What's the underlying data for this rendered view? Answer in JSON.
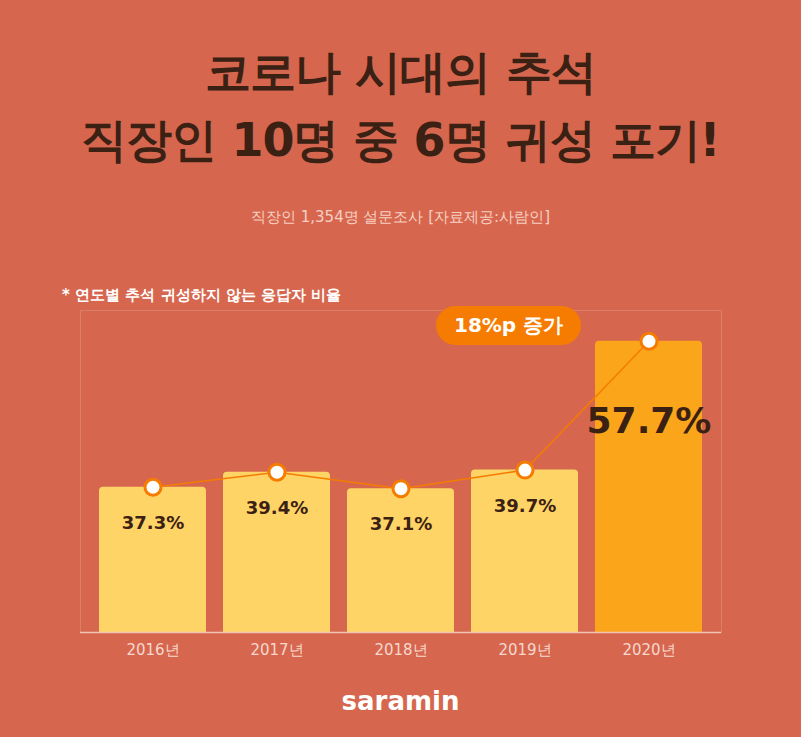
{
  "chart_data": {
    "type": "bar",
    "title": [
      "코로나 시대의 추석",
      "직장인 10명 중 6명 귀성 포기!"
    ],
    "subtitle": "직장인 1,354명 설문조사 [자료제공:사람인]",
    "ylabel": "* 연도별 추석 귀성하지 않는 응답자 비율",
    "annotations": [
      "18%p 증가"
    ],
    "caption": "saramin",
    "categories": [
      "2016년",
      "2017년",
      "2018년",
      "2019년",
      "2020년"
    ],
    "values": [
      37.3,
      39.4,
      37.1,
      39.7,
      57.7
    ],
    "value_labels": [
      "37.3%",
      "39.4%",
      "37.1%",
      "39.7%",
      "57.7%"
    ],
    "colors": [
      "#FFD466",
      "#FFD466",
      "#FFD466",
      "#FFD466",
      "#FBA51A"
    ],
    "ylim": [
      17,
      62
    ],
    "data_labels": true,
    "marker": "circle",
    "tick_labels": "x"
  }
}
